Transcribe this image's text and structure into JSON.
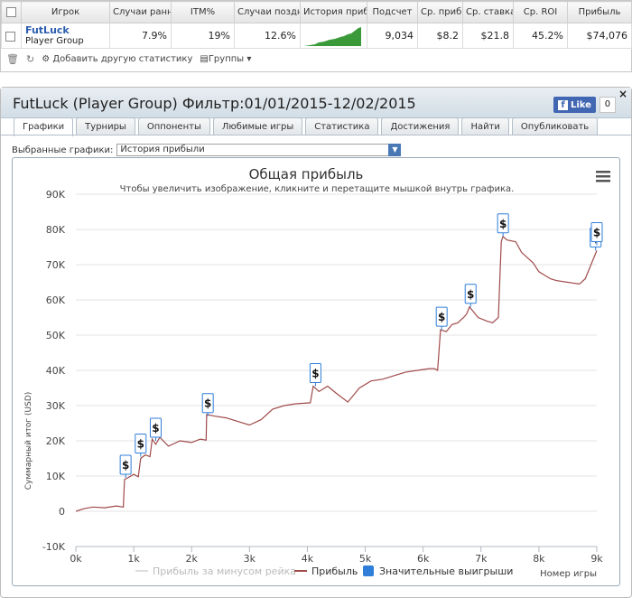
{
  "table": {
    "headers": [
      "Игрок",
      "Случаи ранней",
      "ITM%",
      "Случаи поздней",
      "История прибыли",
      "Подсчет",
      "Ср. прибыль",
      "Ср. ставка",
      "Ср. ROI",
      "Прибыль"
    ],
    "row": {
      "player_name": "FutLuck",
      "player_group": "Player Group",
      "early": "7.9%",
      "itm": "19%",
      "late": "12.6%",
      "count": "9,034",
      "avg_profit": "$8.2",
      "avg_stake": "$21.8",
      "avg_roi": "45.2%",
      "profit": "$74,076"
    },
    "toolbar": {
      "add_stats": "Добавить другую статистику",
      "groups": "Группы"
    }
  },
  "panel": {
    "title": "FutLuck (Player Group) Фильтр:01/01/2015-12/02/2015",
    "fb_like": "Like",
    "fb_count": "0",
    "close": "×",
    "tabs": [
      "Графики",
      "Турниры",
      "Оппоненты",
      "Любимые игры",
      "Статистика",
      "Достижения",
      "Найти",
      "Опубликовать"
    ],
    "active_tab": 0,
    "select_label": "Выбранные графики:",
    "select_value": "История прибыли"
  },
  "colors": {
    "profit_line": "#a04a4a",
    "rake_line": "#dddddd",
    "big_win": "#2f7ed8",
    "sparkline": "#3a9a3a"
  },
  "chart_data": {
    "type": "line",
    "title": "Общая прибыль",
    "subtitle": "Чтобы увеличить изображение, кликните и перетащите мышкой внутрь графика.",
    "xlabel": "Номер игры",
    "ylabel": "Суммарный итог (USD)",
    "xlim": [
      0,
      9000
    ],
    "ylim": [
      -10000,
      90000
    ],
    "x_ticks": [
      "0k",
      "1k",
      "2k",
      "3k",
      "4k",
      "5k",
      "6k",
      "7k",
      "8k",
      "9k"
    ],
    "y_ticks": [
      "-10K",
      "0",
      "10K",
      "20K",
      "30K",
      "40K",
      "50K",
      "60K",
      "70K",
      "80K",
      "90K"
    ],
    "grid": "horizontal",
    "legend": [
      "Прибыль за минусом рейка",
      "Прибыль",
      "Значительные выигрыши"
    ],
    "legend_placement": "bottom",
    "series": [
      {
        "name": "Прибыль",
        "x": [
          0,
          150,
          300,
          500,
          700,
          820,
          840,
          900,
          1000,
          1080,
          1120,
          1200,
          1280,
          1320,
          1380,
          1450,
          1600,
          1800,
          2000,
          2150,
          2250,
          2260,
          2400,
          2600,
          2800,
          3000,
          3200,
          3400,
          3600,
          3800,
          4050,
          4100,
          4200,
          4350,
          4500,
          4700,
          4900,
          5100,
          5300,
          5500,
          5700,
          5900,
          6100,
          6200,
          6250,
          6300,
          6400,
          6500,
          6600,
          6700,
          6750,
          6800,
          6950,
          7100,
          7200,
          7300,
          7350,
          7380,
          7450,
          7600,
          7700,
          7900,
          8000,
          8200,
          8300,
          8500,
          8700,
          8800,
          8900,
          9000
        ],
        "y": [
          0,
          800,
          1200,
          1000,
          1500,
          1200,
          9000,
          9500,
          10500,
          9800,
          15000,
          16000,
          15500,
          20500,
          19000,
          21000,
          18500,
          20000,
          19500,
          20500,
          20200,
          27500,
          27000,
          26500,
          25500,
          24500,
          26000,
          29000,
          30000,
          30500,
          30800,
          35500,
          34000,
          35500,
          33500,
          31000,
          35000,
          37000,
          37500,
          38500,
          39500,
          40000,
          40500,
          40500,
          40000,
          51500,
          51000,
          53000,
          53500,
          55000,
          56000,
          58000,
          55000,
          54000,
          53500,
          55000,
          76500,
          78000,
          77000,
          76500,
          73500,
          70500,
          68000,
          66000,
          65500,
          65000,
          64500,
          66000,
          70000,
          74000
        ]
      },
      {
        "name": "Значительные выигрыши",
        "x": [
          860,
          1120,
          1380,
          2280,
          4140,
          6320,
          6820,
          7380,
          8980,
          9000
        ],
        "y": [
          9500,
          15500,
          20000,
          27000,
          35500,
          51500,
          58000,
          78000,
          74000,
          75500
        ]
      }
    ]
  }
}
